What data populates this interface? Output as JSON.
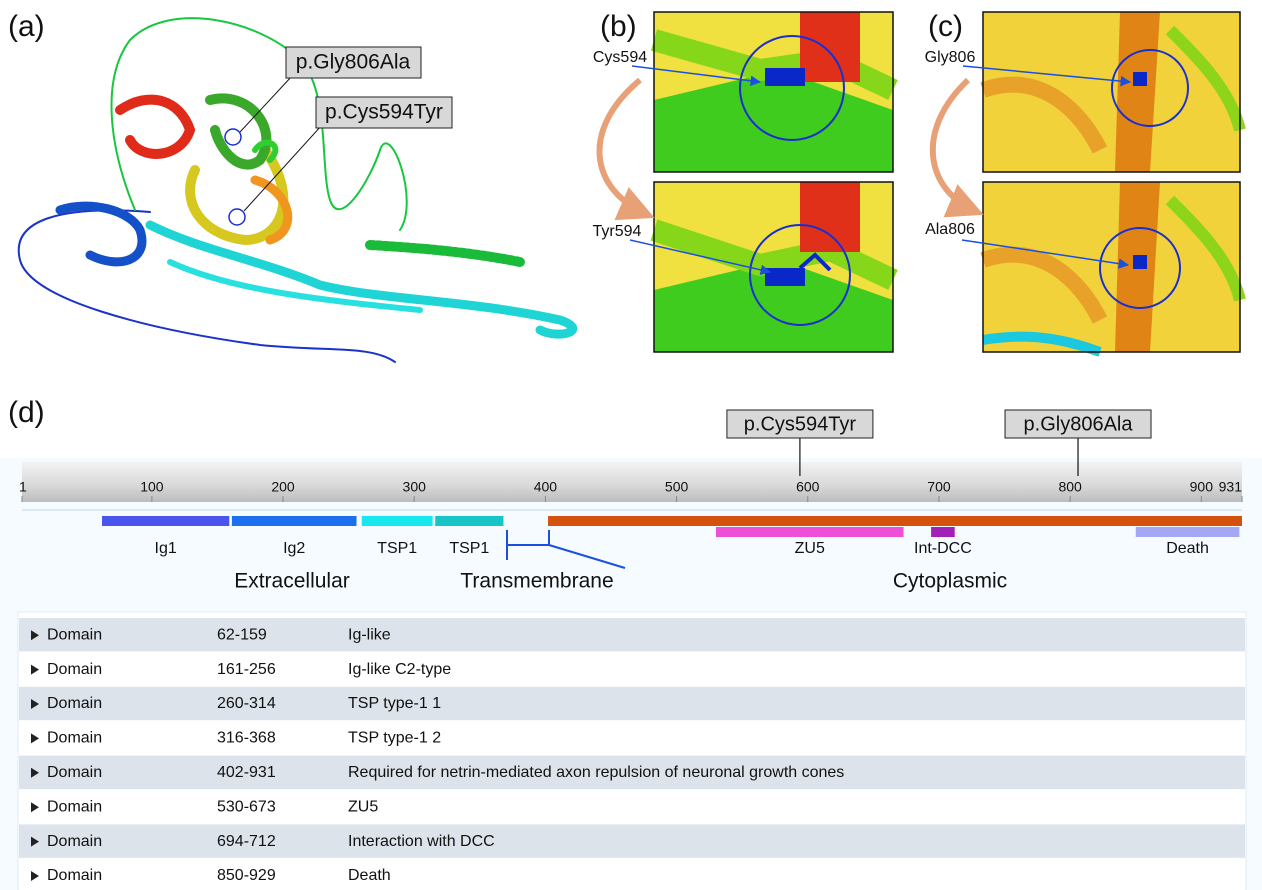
{
  "panels": {
    "a": "(a)",
    "b": "(b)",
    "c": "(c)",
    "d": "(d)"
  },
  "structure_callouts": [
    "p.Gly806Ala",
    "p.Cys594Tyr"
  ],
  "zoom_b": {
    "top_label": "Cys594",
    "bottom_label": "Tyr594"
  },
  "zoom_c": {
    "top_label": "Gly806",
    "bottom_label": "Ala806"
  },
  "domain_map": {
    "xlim": [
      1,
      931
    ],
    "xticks": [
      1,
      100,
      200,
      300,
      400,
      500,
      600,
      700,
      800,
      900,
      931
    ],
    "mutations": [
      {
        "label": "p.Cys594Tyr",
        "position": 594
      },
      {
        "label": "p.Gly806Ala",
        "position": 806
      }
    ],
    "cytoplasmic_bar": {
      "start": 402,
      "end": 931,
      "color": "#d2520e"
    },
    "domains": [
      {
        "label": "Ig1",
        "start": 62,
        "end": 159,
        "color": "#4a55ee"
      },
      {
        "label": "Ig2",
        "start": 161,
        "end": 256,
        "color": "#1d6ff0"
      },
      {
        "label": "TSP1",
        "start": 260,
        "end": 314,
        "color": "#18e8ee"
      },
      {
        "label": "TSP1",
        "start": 316,
        "end": 368,
        "color": "#17c4c8"
      },
      {
        "label": "ZU5",
        "start": 530,
        "end": 673,
        "color": "#ee4fd8"
      },
      {
        "label": "Int-DCC",
        "start": 694,
        "end": 712,
        "color": "#a21fb8"
      },
      {
        "label": "Death",
        "start": 850,
        "end": 929,
        "color": "#a4a8f4"
      }
    ],
    "regions": [
      "Extracellular",
      "Transmembrane",
      "Cytoplasmic"
    ]
  },
  "table": {
    "rows": [
      [
        "Domain",
        "62-159",
        "Ig-like"
      ],
      [
        "Domain",
        "161-256",
        "Ig-like C2-type"
      ],
      [
        "Domain",
        "260-314",
        "TSP type-1 1"
      ],
      [
        "Domain",
        "316-368",
        "TSP type-1 2"
      ],
      [
        "Domain",
        "402-931",
        "Required for netrin-mediated axon repulsion of neuronal growth cones"
      ],
      [
        "Domain",
        "530-673",
        "ZU5"
      ],
      [
        "Domain",
        "694-712",
        "Interaction with DCC"
      ],
      [
        "Domain",
        "850-929",
        "Death"
      ]
    ]
  }
}
